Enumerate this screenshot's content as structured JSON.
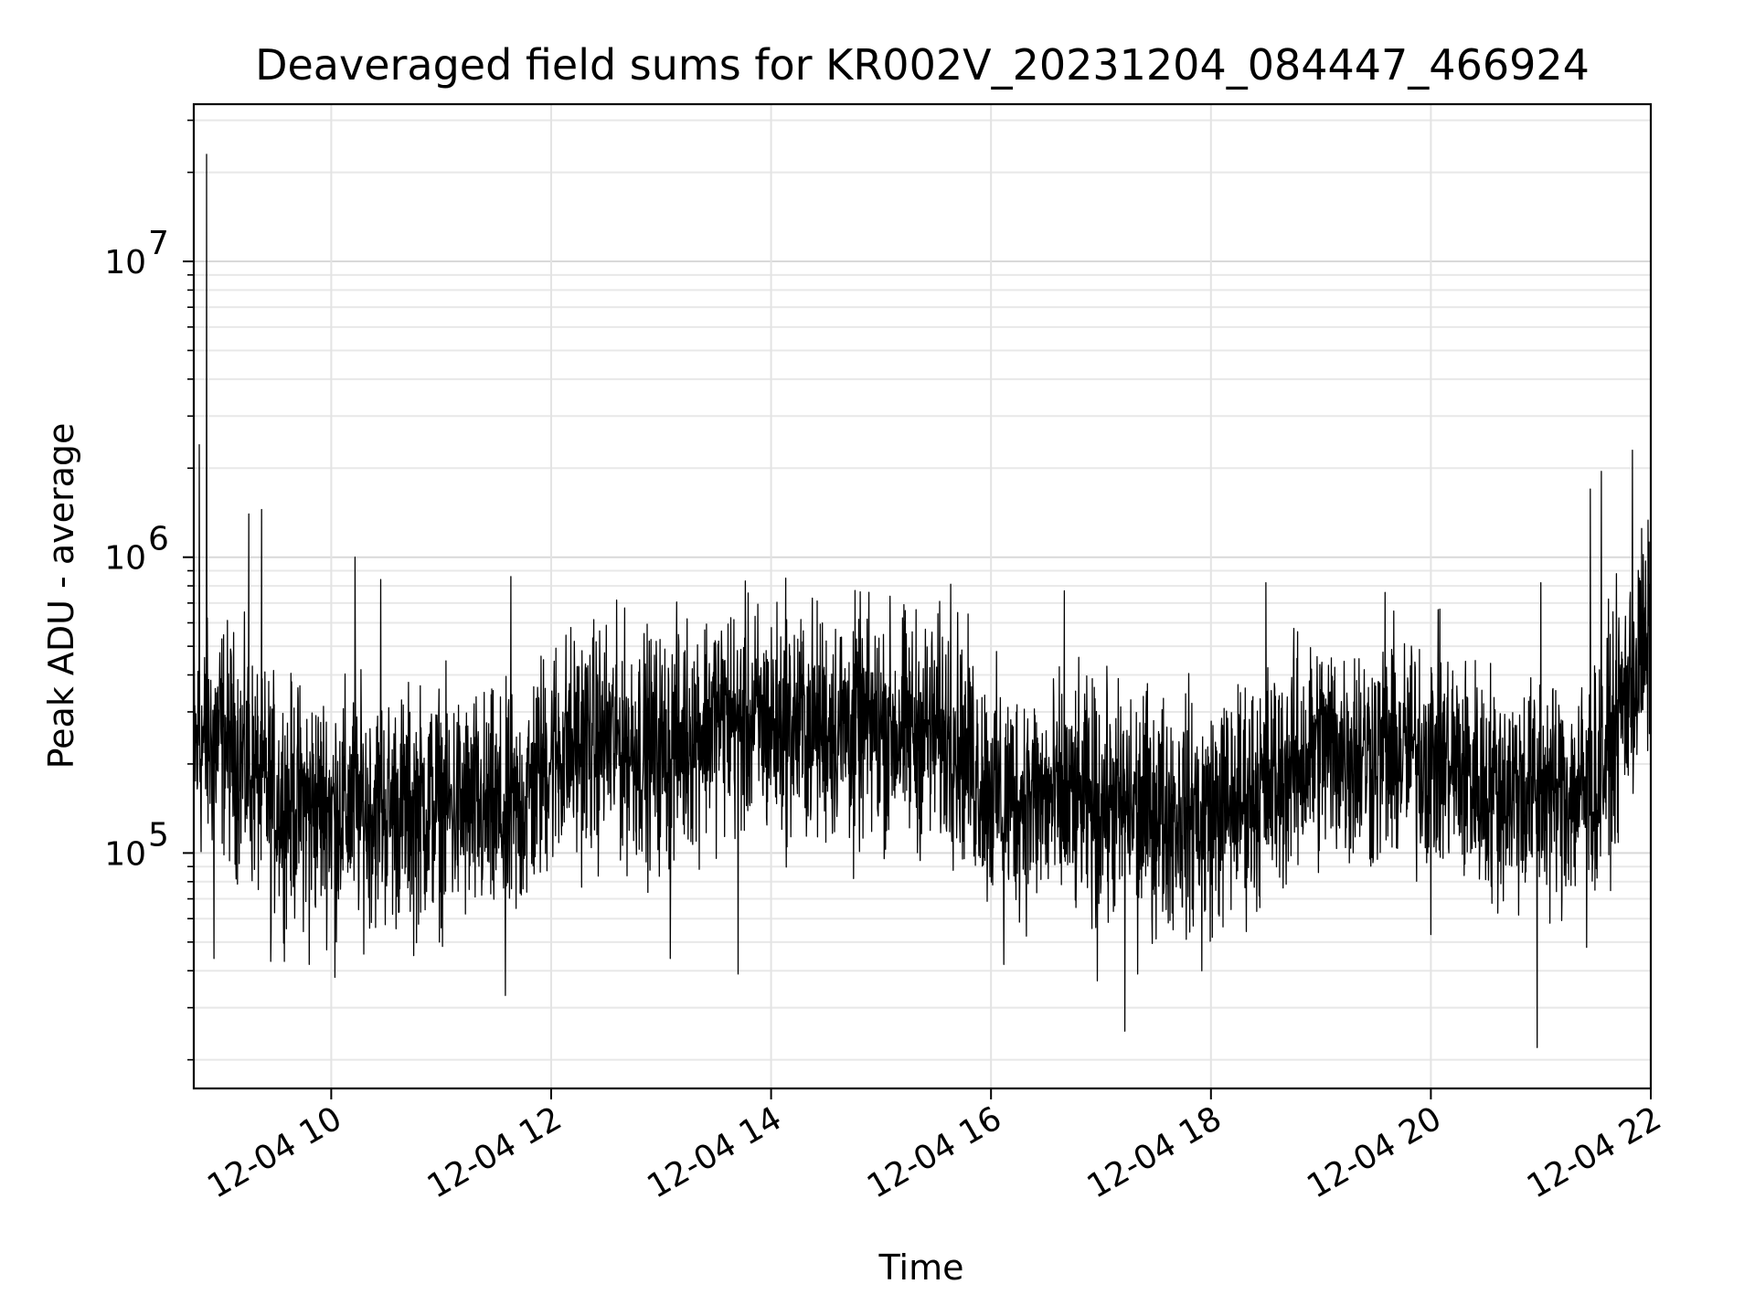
{
  "chart_data": {
    "type": "line",
    "title": "Deaveraged field sums for KR002V_20231204_084447_466924",
    "xlabel": "Time",
    "ylabel": "Peak ADU - average",
    "yscale": "log",
    "xlim": [
      "2023-12-04 08:45",
      "2023-12-04 22:00"
    ],
    "ylim": [
      16000,
      34000000
    ],
    "grid": true,
    "legend": "none",
    "x_tick_labels": [
      "12-04 10",
      "12-04 12",
      "12-04 14",
      "12-04 16",
      "12-04 18",
      "12-04 20",
      "12-04 22"
    ],
    "x_tick_hours": [
      10,
      12,
      14,
      16,
      18,
      20,
      22
    ],
    "y_tick_labels": [
      {
        "base": "10",
        "exp": "5",
        "value": 100000
      },
      {
        "base": "10",
        "exp": "6",
        "value": 1000000
      },
      {
        "base": "10",
        "exp": "7",
        "value": 10000000
      }
    ],
    "series": [
      {
        "color": "#000000",
        "baseline": [
          [
            "2023-12-04 08:45",
            220000
          ],
          [
            "2023-12-04 09:00",
            250000
          ],
          [
            "2023-12-04 09:30",
            150000
          ],
          [
            "2023-12-04 10:00",
            145000
          ],
          [
            "2023-12-04 10:30",
            140000
          ],
          [
            "2023-12-04 11:00",
            145000
          ],
          [
            "2023-12-04 11:40",
            130000
          ],
          [
            "2023-12-04 12:00",
            220000
          ],
          [
            "2023-12-04 12:30",
            240000
          ],
          [
            "2023-12-04 13:00",
            220000
          ],
          [
            "2023-12-04 13:30",
            290000
          ],
          [
            "2023-12-04 14:00",
            270000
          ],
          [
            "2023-12-04 14:30",
            270000
          ],
          [
            "2023-12-04 15:00",
            265000
          ],
          [
            "2023-12-04 15:40",
            250000
          ],
          [
            "2023-12-04 16:00",
            160000
          ],
          [
            "2023-12-04 16:30",
            150000
          ],
          [
            "2023-12-04 17:00",
            145000
          ],
          [
            "2023-12-04 17:30",
            140000
          ],
          [
            "2023-12-04 18:00",
            135000
          ],
          [
            "2023-12-04 18:30",
            170000
          ],
          [
            "2023-12-04 19:00",
            230000
          ],
          [
            "2023-12-04 19:30",
            215000
          ],
          [
            "2023-12-04 20:00",
            220000
          ],
          [
            "2023-12-04 20:30",
            170000
          ],
          [
            "2023-12-04 21:00",
            160000
          ],
          [
            "2023-12-04 21:30",
            165000
          ],
          [
            "2023-12-04 21:45",
            320000
          ],
          [
            "2023-12-04 22:00",
            520000
          ]
        ],
        "spikes": [
          [
            "2023-12-04 08:48",
            2400000
          ],
          [
            "2023-12-04 08:52",
            23000000
          ],
          [
            "2023-12-04 08:56",
            44000
          ],
          [
            "2023-12-04 09:15",
            1400000
          ],
          [
            "2023-12-04 09:22",
            1450000
          ],
          [
            "2023-12-04 09:27",
            43000
          ],
          [
            "2023-12-04 09:48",
            42000
          ],
          [
            "2023-12-04 10:02",
            38000
          ],
          [
            "2023-12-04 10:13",
            1000000
          ],
          [
            "2023-12-04 10:27",
            840000
          ],
          [
            "2023-12-04 10:45",
            45000
          ],
          [
            "2023-12-04 11:35",
            33000
          ],
          [
            "2023-12-04 11:38",
            860000
          ],
          [
            "2023-12-04 13:05",
            44000
          ],
          [
            "2023-12-04 13:42",
            39000
          ],
          [
            "2023-12-04 14:08",
            850000
          ],
          [
            "2023-12-04 14:45",
            82000
          ],
          [
            "2023-12-04 15:38",
            810000
          ],
          [
            "2023-12-04 16:07",
            42000
          ],
          [
            "2023-12-04 16:40",
            770000
          ],
          [
            "2023-12-04 16:58",
            37000
          ],
          [
            "2023-12-04 17:13",
            25000
          ],
          [
            "2023-12-04 17:20",
            39000
          ],
          [
            "2023-12-04 17:55",
            40000
          ],
          [
            "2023-12-04 18:30",
            820000
          ],
          [
            "2023-12-04 19:35",
            760000
          ],
          [
            "2023-12-04 20:00",
            53000
          ],
          [
            "2023-12-04 20:58",
            22000
          ],
          [
            "2023-12-04 21:00",
            820000
          ],
          [
            "2023-12-04 21:25",
            48000
          ],
          [
            "2023-12-04 21:27",
            1700000
          ],
          [
            "2023-12-04 21:33",
            1950000
          ],
          [
            "2023-12-04 21:50",
            2300000
          ],
          [
            "2023-12-04 21:55",
            1250000
          ]
        ]
      }
    ]
  }
}
